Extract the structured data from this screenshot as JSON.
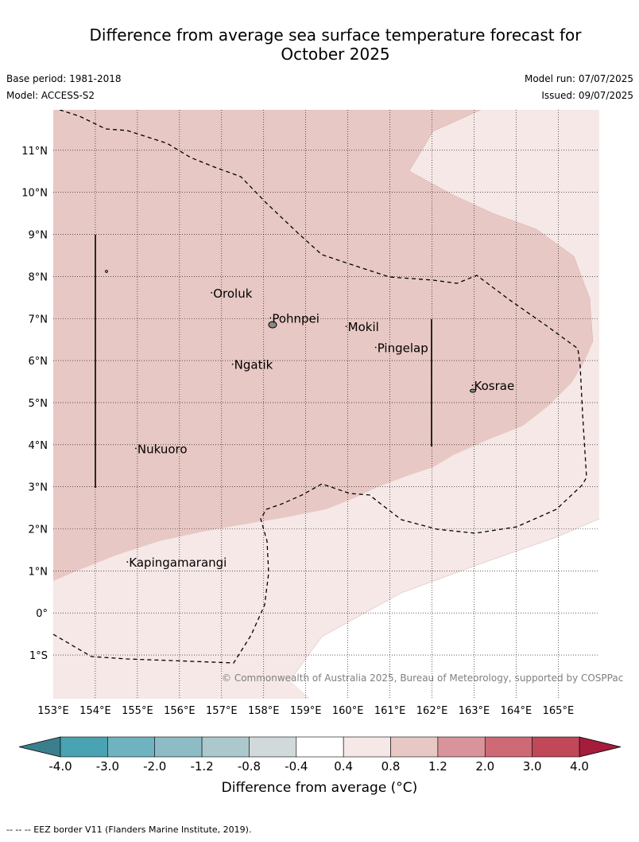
{
  "title_line1": "Difference from average sea surface temperature forecast for",
  "title_line2": "October 2025",
  "base_period": "Base period: 1981-2018",
  "model": "Model: ACCESS-S2",
  "model_run": "Model run: 07/07/2025",
  "issued": "Issued: 09/07/2025",
  "map": {
    "lon_labels": [
      "153°E",
      "154°E",
      "155°E",
      "156°E",
      "157°E",
      "158°E",
      "159°E",
      "160°E",
      "161°E",
      "162°E",
      "163°E",
      "164°E",
      "165°E"
    ],
    "lat_labels": [
      "11°N",
      "10°N",
      "9°N",
      "8°N",
      "7°N",
      "6°N",
      "5°N",
      "4°N",
      "3°N",
      "2°N",
      "1°N",
      "0°",
      "1°S"
    ],
    "islands": [
      {
        "name": "Oroluk",
        "lon": 156.8,
        "lat": 7.5
      },
      {
        "name": "Pohnpei",
        "lon": 158.2,
        "lat": 6.9
      },
      {
        "name": "Mokil",
        "lon": 160.0,
        "lat": 6.7
      },
      {
        "name": "Pingelap",
        "lon": 160.7,
        "lat": 6.2
      },
      {
        "name": "Ngatik",
        "lon": 157.3,
        "lat": 5.8
      },
      {
        "name": "Kosrae",
        "lon": 163.0,
        "lat": 5.3
      },
      {
        "name": "Nukuoro",
        "lon": 155.0,
        "lat": 3.8
      },
      {
        "name": "Kapingamarangi",
        "lon": 154.8,
        "lat": 1.1
      }
    ],
    "colors": {
      "band_0_8_1_2": "#e8c8c4",
      "band_0_4_0_8": "#f5e8e6",
      "neutral": "#ffffff"
    }
  },
  "credit": "© Commonwealth of Australia 2025, Bureau of Meteorology, supported by COSPPac",
  "colorbar": {
    "ticks": [
      "-4.0",
      "-3.0",
      "-2.0",
      "-1.2",
      "-0.8",
      "-0.4",
      "0.4",
      "0.8",
      "1.2",
      "2.0",
      "3.0",
      "4.0"
    ],
    "colors": [
      "#4aa3b2",
      "#6fb3c0",
      "#8ebcc6",
      "#abc9cc",
      "#d1d9da",
      "#ffffff",
      "#f5e8e6",
      "#e8c8c4",
      "#d9949b",
      "#cd6a76",
      "#c04858"
    ],
    "under_color": "#3b7f8e",
    "over_color": "#a51d3b",
    "title": "Difference from average (°C)"
  },
  "footnote": "--  --  -- EEZ border V11 (Flanders Marine Institute, 2019)."
}
